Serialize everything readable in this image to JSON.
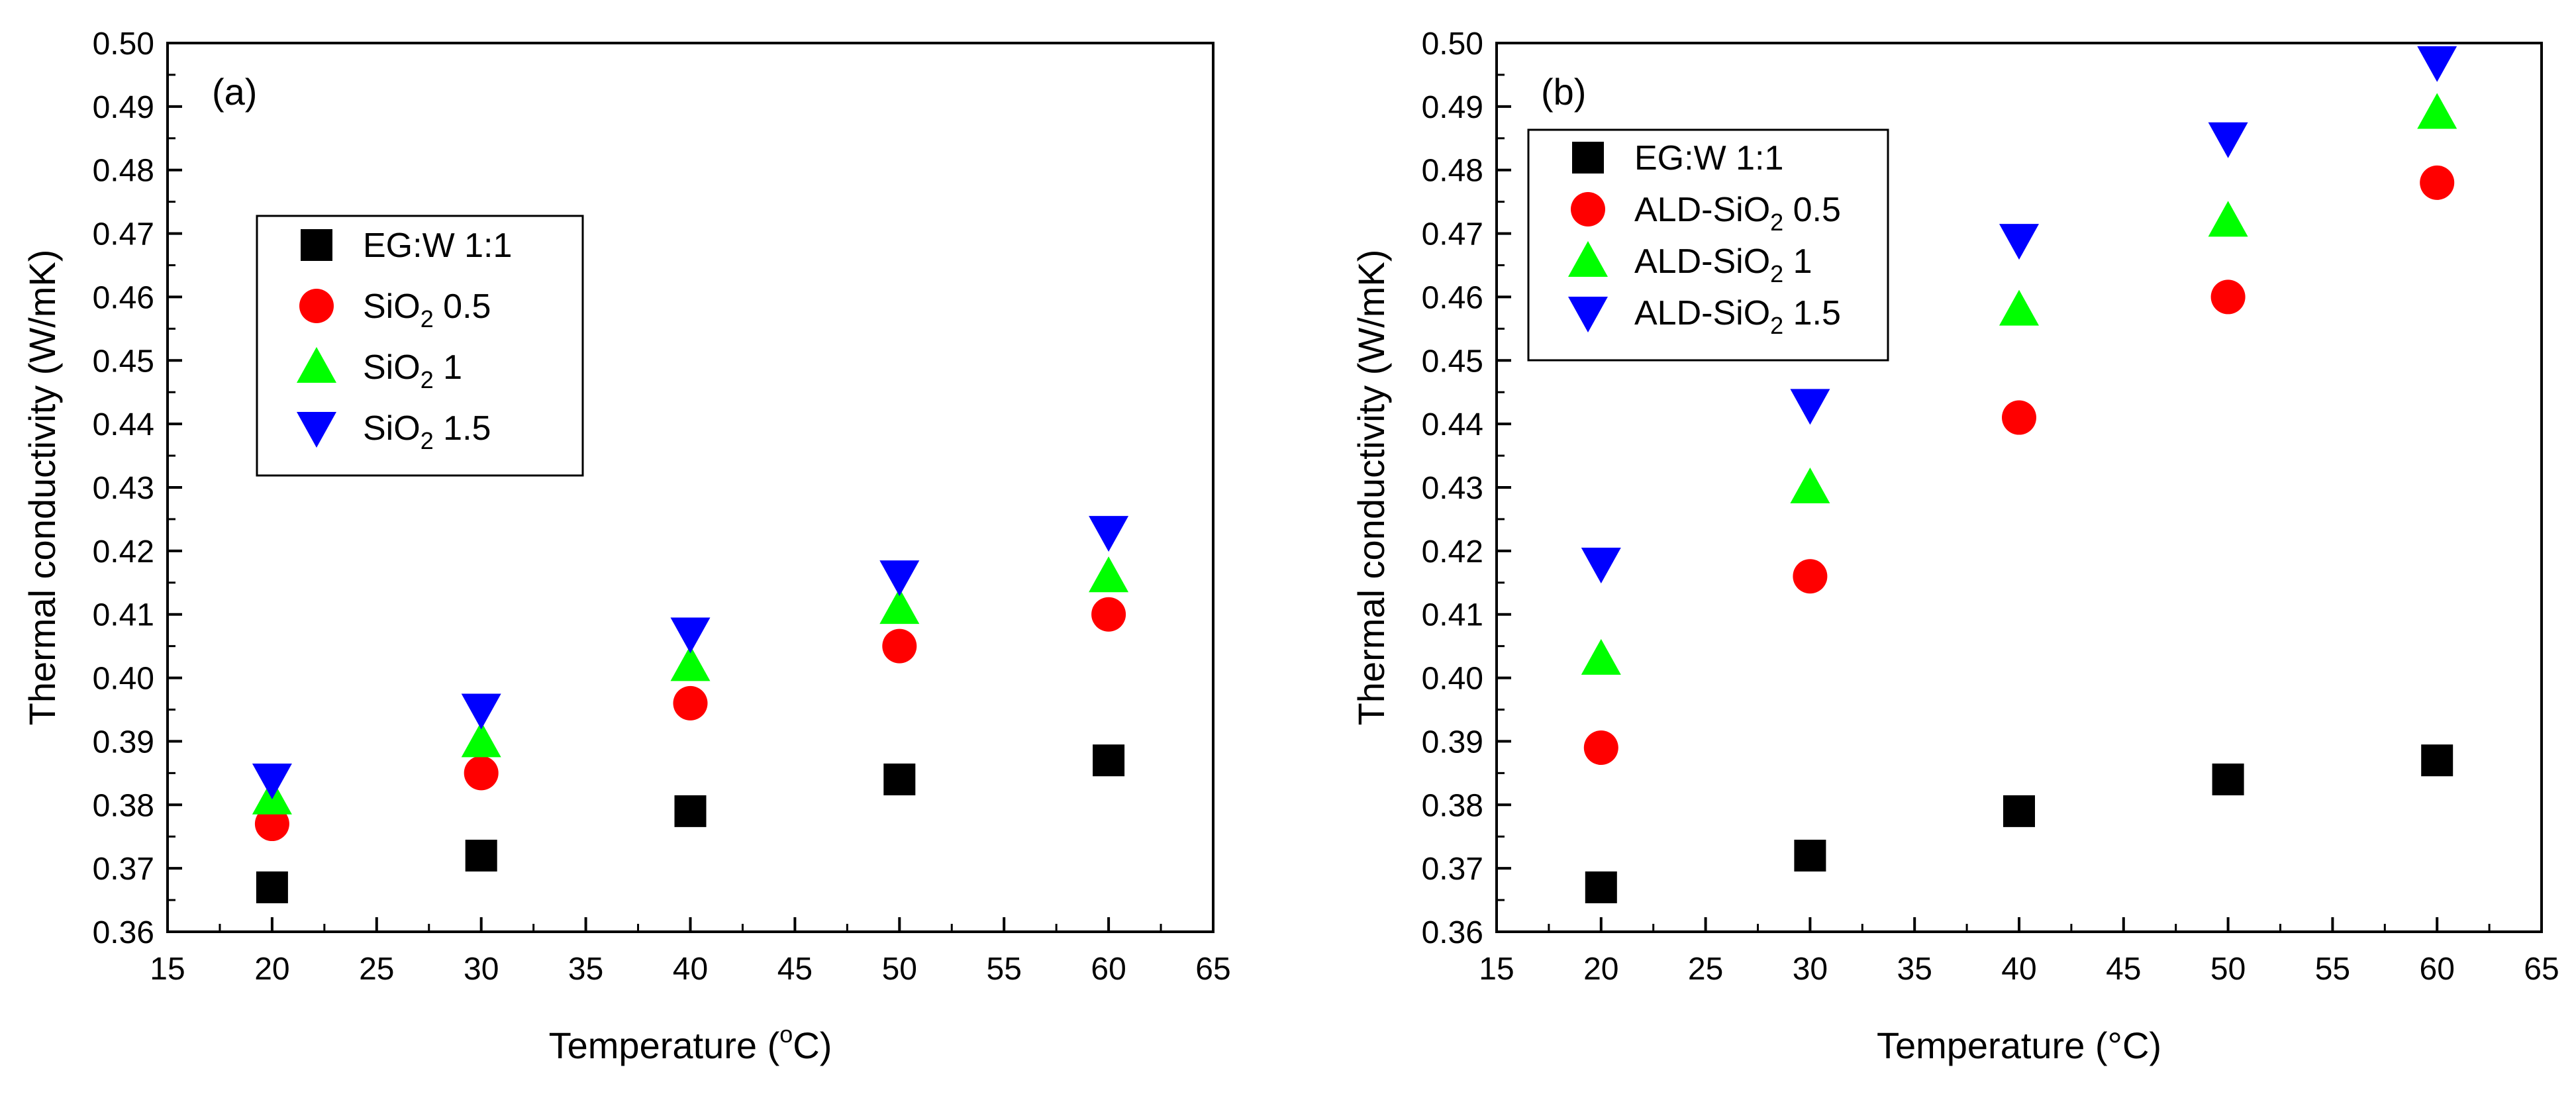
{
  "chart_data": [
    {
      "type": "scatter",
      "panel_label": "(a)",
      "xlabel": "Temperature (",
      "xlabel_sup": "o",
      "xlabel_tail": "C)",
      "ylabel": "Thermal conductivity (W/mK)",
      "xlim": [
        15,
        65
      ],
      "ylim": [
        0.36,
        0.5
      ],
      "xticks": [
        "15",
        "20",
        "25",
        "30",
        "35",
        "40",
        "45",
        "50",
        "55",
        "60",
        "65"
      ],
      "yticks": [
        "0.36",
        "0.37",
        "0.38",
        "0.39",
        "0.40",
        "0.41",
        "0.42",
        "0.43",
        "0.44",
        "0.45",
        "0.46",
        "0.47",
        "0.48",
        "0.49",
        "0.50"
      ],
      "legend_position": "upper-left",
      "x": [
        20,
        30,
        40,
        50,
        60
      ],
      "series": [
        {
          "name": "EG:W 1:1",
          "name_main": "EG:W 1:1",
          "name_sub": "",
          "name_tail": "",
          "marker": "square",
          "color": "#000000",
          "values": [
            0.367,
            0.372,
            0.379,
            0.384,
            0.387
          ]
        },
        {
          "name": "SiO2 0.5",
          "name_main": "SiO",
          "name_sub": "2",
          "name_tail": " 0.5",
          "marker": "circle",
          "color": "#ff0000",
          "values": [
            0.377,
            0.385,
            0.396,
            0.405,
            0.41
          ]
        },
        {
          "name": "SiO2 1",
          "name_main": "SiO",
          "name_sub": "2",
          "name_tail": " 1",
          "marker": "triangle-up",
          "color": "#00ff00",
          "values": [
            0.381,
            0.39,
            0.402,
            0.411,
            0.416
          ]
        },
        {
          "name": "SiO2 1.5",
          "name_main": "SiO",
          "name_sub": "2",
          "name_tail": " 1.5",
          "marker": "triangle-down",
          "color": "#0000ff",
          "values": [
            0.384,
            0.395,
            0.407,
            0.416,
            0.423
          ]
        }
      ]
    },
    {
      "type": "scatter",
      "panel_label": "(b)",
      "xlabel": "Temperature (°C)",
      "xlabel_sup": "",
      "xlabel_tail": "",
      "ylabel": "Thermal conductivity (W/mK)",
      "xlim": [
        15,
        65
      ],
      "ylim": [
        0.36,
        0.5
      ],
      "xticks": [
        "15",
        "20",
        "25",
        "30",
        "35",
        "40",
        "45",
        "50",
        "55",
        "60",
        "65"
      ],
      "yticks": [
        "0.36",
        "0.37",
        "0.38",
        "0.39",
        "0.40",
        "0.41",
        "0.42",
        "0.43",
        "0.44",
        "0.45",
        "0.46",
        "0.47",
        "0.48",
        "0.49",
        "0.50"
      ],
      "legend_position": "upper-left",
      "x": [
        20,
        30,
        40,
        50,
        60
      ],
      "series": [
        {
          "name": "EG:W 1:1",
          "name_main": "EG:W 1:1",
          "name_sub": "",
          "name_tail": "",
          "marker": "square",
          "color": "#000000",
          "values": [
            0.367,
            0.372,
            0.379,
            0.384,
            0.387
          ]
        },
        {
          "name": "ALD-SiO2 0.5",
          "name_main": "ALD-SiO",
          "name_sub": "2",
          "name_tail": " 0.5",
          "marker": "circle",
          "color": "#ff0000",
          "values": [
            0.389,
            0.416,
            0.441,
            0.46,
            0.478
          ]
        },
        {
          "name": "ALD-SiO2 1",
          "name_main": "ALD-SiO",
          "name_sub": "2",
          "name_tail": " 1",
          "marker": "triangle-up",
          "color": "#00ff00",
          "values": [
            0.403,
            0.43,
            0.458,
            0.472,
            0.489
          ]
        },
        {
          "name": "ALD-SiO2 1.5",
          "name_main": "ALD-SiO",
          "name_sub": "2",
          "name_tail": " 1.5",
          "marker": "triangle-down",
          "color": "#0000ff",
          "values": [
            0.418,
            0.443,
            0.469,
            0.485,
            0.497
          ]
        }
      ]
    }
  ]
}
